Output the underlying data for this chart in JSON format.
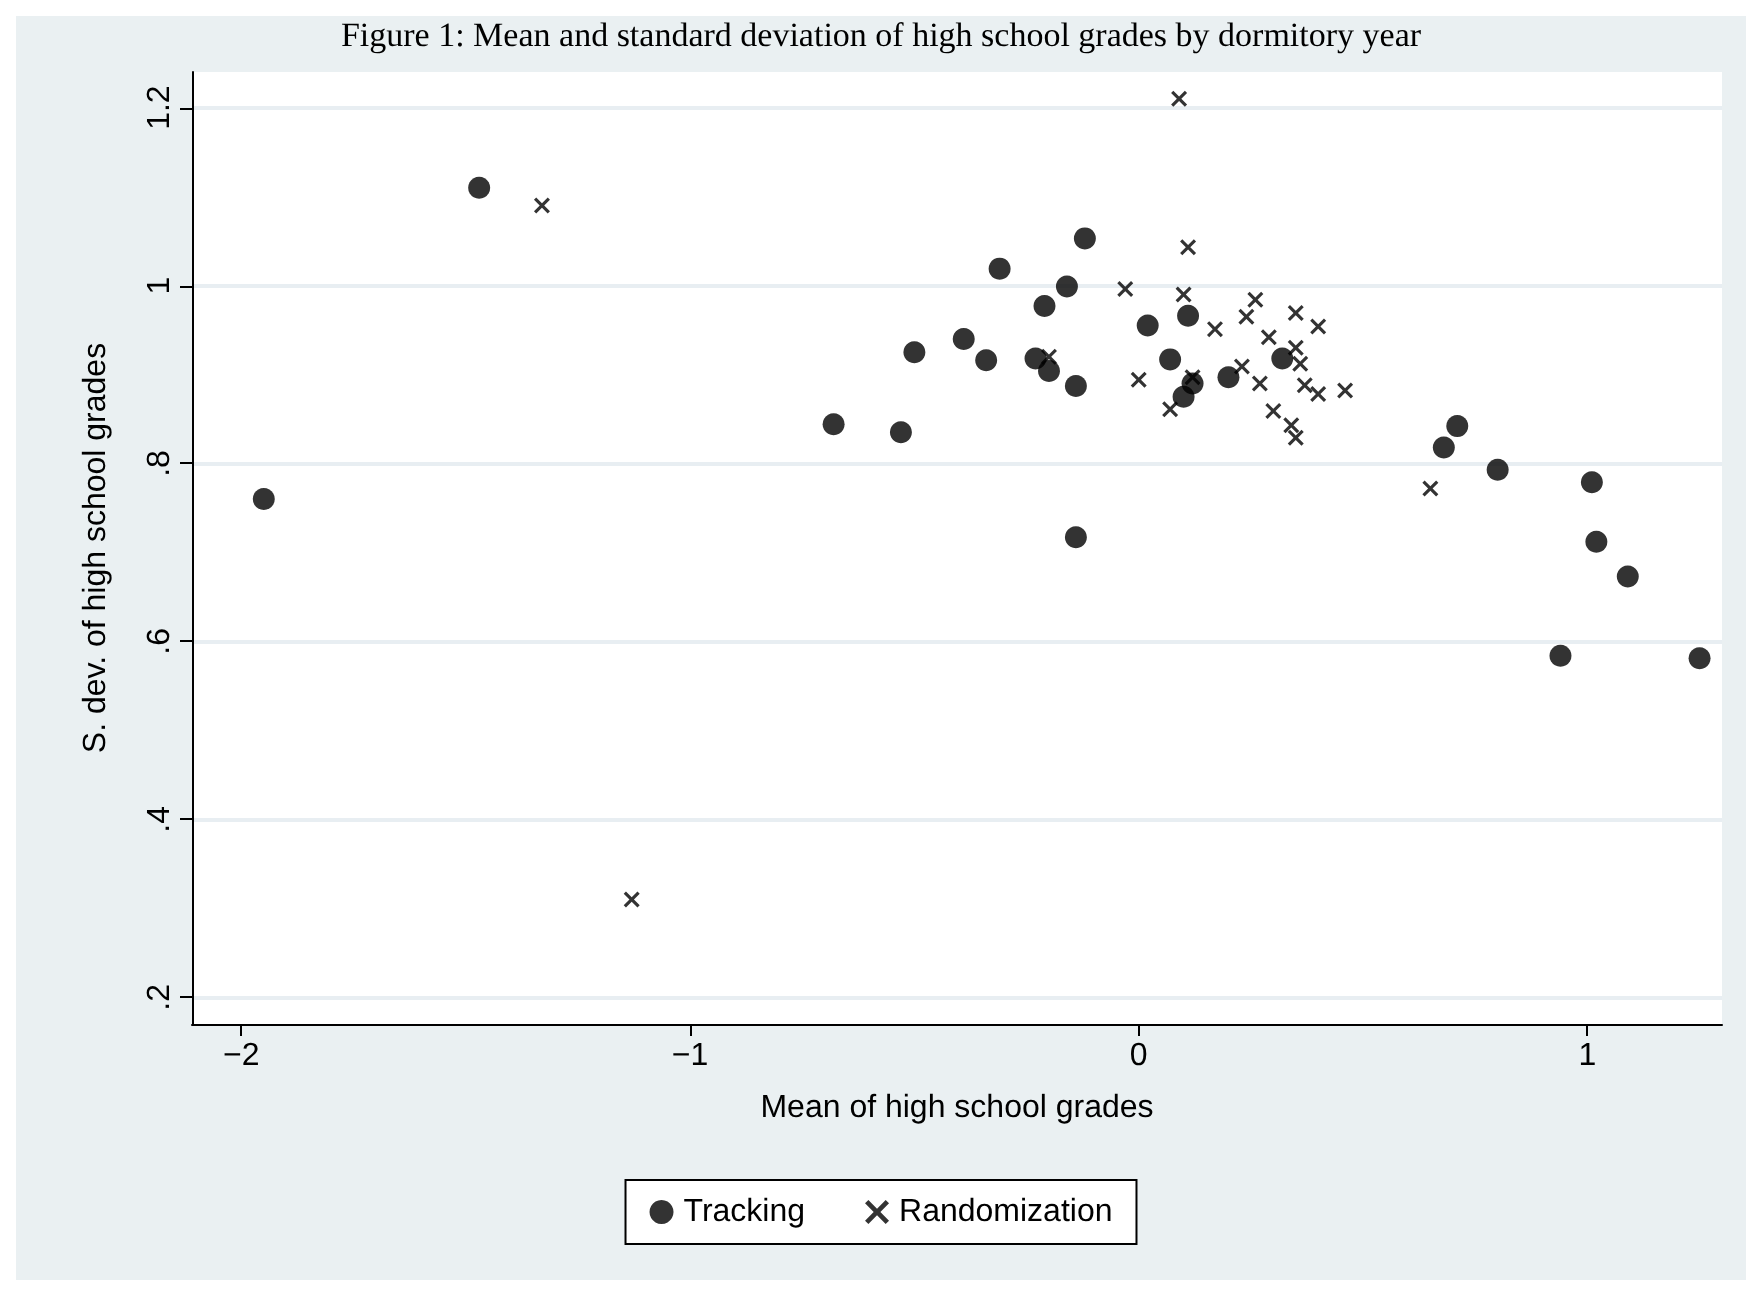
{
  "chart_data": {
    "type": "scatter",
    "title": "Figure 1: Mean and standard deviation of high school grades by dormitory year",
    "xlabel": "Mean of high school grades",
    "ylabel": "S. dev. of high school grades",
    "xlim": [
      -2.11,
      1.3
    ],
    "ylim": [
      0.17,
      1.24
    ],
    "xticks": [
      {
        "value": -2,
        "label": "−2"
      },
      {
        "value": -1,
        "label": "−1"
      },
      0,
      1
    ],
    "yticks": [
      {
        "value": 0.2,
        "label": ".2"
      },
      {
        "value": 0.4,
        "label": ".4"
      },
      {
        "value": 0.6,
        "label": ".6"
      },
      {
        "value": 0.8,
        "label": ".8"
      },
      1,
      1.2
    ],
    "grid": "y",
    "legend": "bottom",
    "series": [
      {
        "name": "Tracking",
        "color": "#000000",
        "marker": "circle",
        "x": [
          -1.95,
          -1.47,
          -0.12,
          -0.31,
          -0.16,
          -0.21,
          -0.5,
          -0.39,
          -0.34,
          -0.23,
          -0.2,
          -0.14,
          -0.68,
          -0.53,
          -0.14,
          0.02,
          0.11,
          0.07,
          0.1,
          0.12,
          0.2,
          0.32,
          0.71,
          0.68,
          0.8,
          1.01,
          1.02,
          1.09,
          0.94,
          1.25
        ],
        "values": [
          0.76,
          1.11,
          1.053,
          1.019,
          0.999,
          0.977,
          0.925,
          0.94,
          0.916,
          0.918,
          0.904,
          0.887,
          0.844,
          0.835,
          0.717,
          0.955,
          0.966,
          0.917,
          0.875,
          0.89,
          0.897,
          0.918,
          0.842,
          0.818,
          0.793,
          0.779,
          0.712,
          0.673,
          0.584,
          0.581
        ]
      },
      {
        "name": "Randomization",
        "color": "#000000",
        "marker": "cross",
        "x": [
          -1.33,
          -1.13,
          0.09,
          0.11,
          -0.03,
          0.1,
          0.26,
          0.35,
          0.24,
          0.4,
          0.17,
          0.29,
          0.35,
          -0.2,
          0.36,
          0.12,
          0.0,
          0.23,
          0.27,
          0.37,
          0.4,
          0.46,
          0.07,
          0.3,
          0.34,
          0.35,
          0.65
        ],
        "values": [
          1.09,
          0.31,
          1.21,
          1.043,
          0.996,
          0.99,
          0.984,
          0.969,
          0.965,
          0.954,
          0.951,
          0.942,
          0.93,
          0.92,
          0.912,
          0.897,
          0.894,
          0.909,
          0.89,
          0.888,
          0.878,
          0.882,
          0.861,
          0.859,
          0.843,
          0.829,
          0.772
        ]
      }
    ]
  }
}
